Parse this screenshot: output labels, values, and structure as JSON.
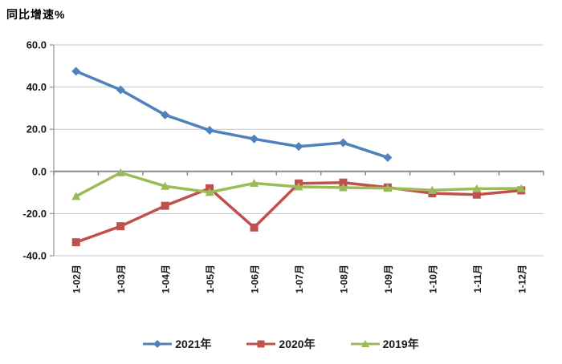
{
  "chart_data": {
    "type": "line",
    "title": "同比增速%",
    "categories": [
      "1-02月",
      "1-03月",
      "1-04月",
      "1-05月",
      "1-06月",
      "1-07月",
      "1-08月",
      "1-09月",
      "1-10月",
      "1-11月",
      "1-12月"
    ],
    "series": [
      {
        "name": "2021年",
        "color": "#4F81BD",
        "marker": "diamond",
        "values": [
          47.5,
          38.7,
          26.8,
          19.5,
          15.4,
          11.8,
          13.6,
          6.6,
          null,
          null,
          null
        ]
      },
      {
        "name": "2020年",
        "color": "#C0504D",
        "marker": "square",
        "values": [
          -33.6,
          -26.0,
          -16.3,
          -8.0,
          -26.6,
          -5.7,
          -5.3,
          -7.6,
          -10.4,
          -11.0,
          -9.0
        ]
      },
      {
        "name": "2019年",
        "color": "#9BBB59",
        "marker": "triangle",
        "values": [
          -11.8,
          -0.6,
          -7.0,
          -9.9,
          -5.6,
          -7.3,
          -7.7,
          -7.9,
          -8.9,
          -8.2,
          -8.1
        ]
      }
    ],
    "ylabel": "同比增速%",
    "xlabel": "",
    "ylim": [
      -40,
      60
    ],
    "yticks": [
      {
        "value": 60,
        "label": "60.0"
      },
      {
        "value": 40,
        "label": "40.0"
      },
      {
        "value": 20,
        "label": "20.0"
      },
      {
        "value": 0,
        "label": "0.0"
      },
      {
        "value": -20,
        "label": "-20.0"
      },
      {
        "value": -40,
        "label": "-40.0"
      }
    ],
    "grid": true,
    "legend_position": "bottom",
    "colors": {
      "gridline": "#C8C8C8",
      "zero_axis": "#8A8A8A",
      "y_axis": "#9B9B9B",
      "tick_text": "#1A1A1A"
    }
  }
}
